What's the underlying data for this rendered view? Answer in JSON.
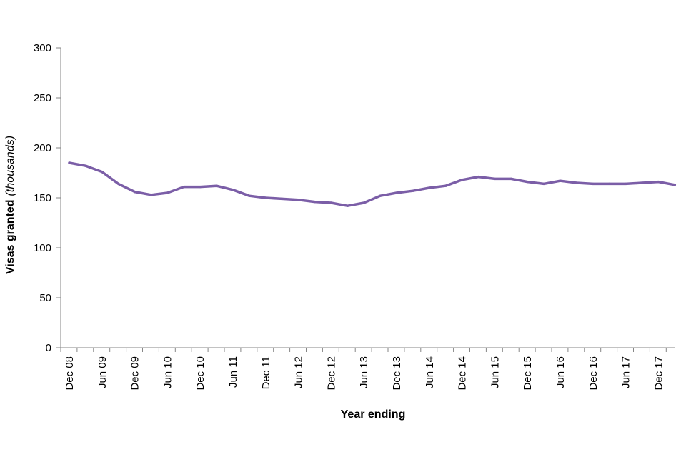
{
  "chart_data": {
    "type": "line",
    "xlabel": "Year ending",
    "ylabel_main": "Visas granted",
    "ylabel_unit": "(thousands)",
    "ylim": [
      0,
      300
    ],
    "yticks": [
      0,
      50,
      100,
      150,
      200,
      250,
      300
    ],
    "grid": false,
    "legend": "none",
    "line_color": "#7b5ea7",
    "x": [
      "Dec 08",
      "Mar 09",
      "Jun 09",
      "Sep 09",
      "Dec 09",
      "Mar 10",
      "Jun 10",
      "Sep 10",
      "Dec 10",
      "Mar 11",
      "Jun 11",
      "Sep 11",
      "Dec 11",
      "Mar 12",
      "Jun 12",
      "Sep 12",
      "Dec 12",
      "Mar 13",
      "Jun 13",
      "Sep 13",
      "Dec 13",
      "Mar 14",
      "Jun 14",
      "Sep 14",
      "Dec 14",
      "Mar 15",
      "Jun 15",
      "Sep 15",
      "Dec 15",
      "Mar 16",
      "Jun 16",
      "Sep 16",
      "Dec 16",
      "Mar 17",
      "Jun 17",
      "Sep 17",
      "Dec 17",
      "Mar 18"
    ],
    "xtick_labels": [
      "Dec 08",
      "Jun 09",
      "Dec 09",
      "Jun 10",
      "Dec 10",
      "Jun 11",
      "Dec 11",
      "Jun 12",
      "Dec 12",
      "Jun 13",
      "Dec 13",
      "Jun 14",
      "Dec 14",
      "Jun 15",
      "Dec 15",
      "Jun 16",
      "Dec 16",
      "Jun 17",
      "Dec 17"
    ],
    "series": [
      {
        "values": [
          185,
          182,
          176,
          164,
          156,
          153,
          155,
          161,
          161,
          162,
          158,
          152,
          150,
          149,
          148,
          146,
          145,
          142,
          145,
          152,
          155,
          157,
          160,
          162,
          168,
          171,
          169,
          169,
          166,
          164,
          167,
          165,
          164,
          164,
          164,
          165,
          166,
          163
        ]
      }
    ]
  }
}
